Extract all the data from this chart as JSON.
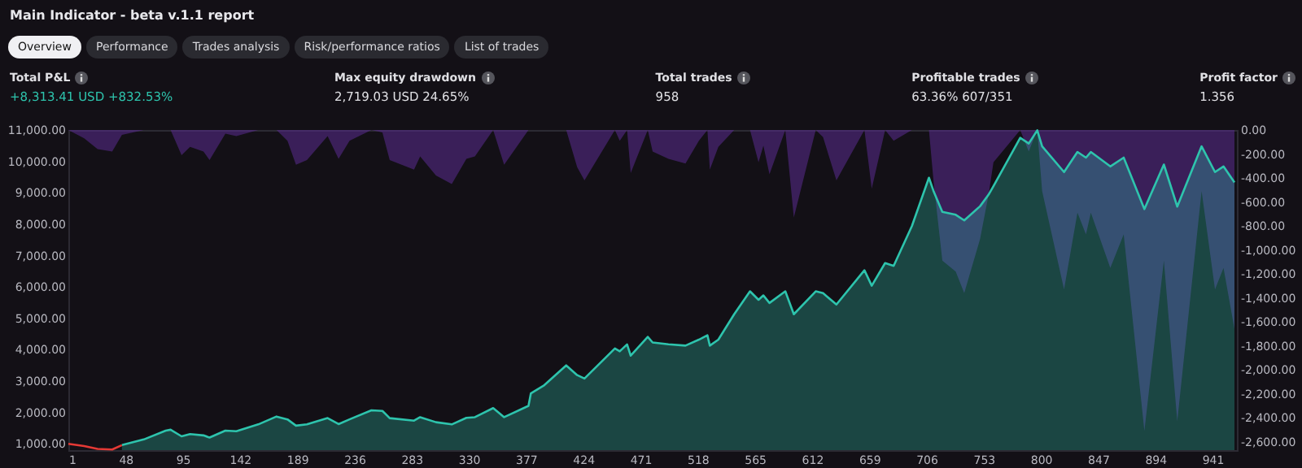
{
  "chart_data": {
    "type": "area",
    "title": "Main Indicator - beta v.1.1 report",
    "annotations": [
      "Overview",
      "Performance",
      "Trades analysis",
      "Risk/performance ratios",
      "List of trades",
      "Total P&L",
      "+8,313.41 USD +832.53%",
      "Max equity drawdown",
      "2,719.03 USD 24.65%",
      "Total trades",
      "958",
      "Profitable trades",
      "63.36% 607/351",
      "Profit factor",
      "1.356"
    ],
    "xlim": [
      1,
      961
    ],
    "xticks": [
      1,
      48,
      95,
      142,
      189,
      236,
      283,
      330,
      377,
      424,
      471,
      518,
      565,
      612,
      659,
      706,
      753,
      800,
      847,
      894,
      941
    ],
    "ylim": [
      800,
      11000
    ],
    "yticks": [
      {
        "value": 1000,
        "label": "1,000.00"
      },
      {
        "value": 2000,
        "label": "2,000.00"
      },
      {
        "value": 3000,
        "label": "3,000.00"
      },
      {
        "value": 4000,
        "label": "4,000.00"
      },
      {
        "value": 5000,
        "label": "5,000.00"
      },
      {
        "value": 6000,
        "label": "6,000.00"
      },
      {
        "value": 7000,
        "label": "7,000.00"
      },
      {
        "value": 8000,
        "label": "8,000.00"
      },
      {
        "value": 9000,
        "label": "9,000.00"
      },
      {
        "value": 10000,
        "label": "10,000.00"
      },
      {
        "value": 11000,
        "label": "11,000.00"
      }
    ],
    "y2lim": [
      -2670,
      0
    ],
    "y2ticks": [
      {
        "value": 0,
        "label": "0.00"
      },
      {
        "value": -200,
        "label": "-200.00"
      },
      {
        "value": -400,
        "label": "-400.00"
      },
      {
        "value": -600,
        "label": "-600.00"
      },
      {
        "value": -800,
        "label": "-800.00"
      },
      {
        "value": -1000,
        "label": "-1,000.00"
      },
      {
        "value": -1200,
        "label": "-1,200.00"
      },
      {
        "value": -1400,
        "label": "-1,400.00"
      },
      {
        "value": -1600,
        "label": "-1,600.00"
      },
      {
        "value": -1800,
        "label": "-1,800.00"
      },
      {
        "value": -2000,
        "label": "-2,000.00"
      },
      {
        "value": -2200,
        "label": "-2,200.00"
      },
      {
        "value": -2400,
        "label": "-2,400.00"
      },
      {
        "value": -2600,
        "label": "-2,600.00"
      }
    ],
    "grid": false,
    "series": [
      {
        "type": "area",
        "axis": "y2",
        "color": "#5b2c91",
        "x": [
          1,
          14,
          25,
          37,
          45,
          63,
          81,
          85,
          94,
          101,
          112,
          117,
          130,
          139,
          157,
          172,
          181,
          188,
          197,
          214,
          223,
          232,
          250,
          259,
          265,
          285,
          290,
          303,
          316,
          328,
          335,
          350,
          359,
          379,
          381,
          392,
          410,
          419,
          425,
          450,
          454,
          460,
          463,
          477,
          481,
          494,
          508,
          519,
          526,
          528,
          535,
          548,
          561,
          568,
          572,
          577,
          590,
          597,
          615,
          621,
          632,
          655,
          661,
          672,
          679,
          694,
          708,
          712,
          719,
          730,
          737,
          750,
          757,
          761,
          783,
          790,
          797,
          801,
          819,
          830,
          837,
          841,
          857,
          868,
          885,
          901,
          912,
          932,
          943,
          950,
          959
        ],
        "values": [
          0,
          -70,
          -160,
          -180,
          -40,
          0,
          0,
          0,
          -210,
          -140,
          -180,
          -250,
          -30,
          -50,
          0,
          0,
          -90,
          -290,
          -250,
          -50,
          -240,
          -90,
          0,
          -20,
          -250,
          -330,
          -220,
          -380,
          -450,
          -240,
          -220,
          0,
          -290,
          0,
          0,
          0,
          0,
          -310,
          -420,
          0,
          -90,
          0,
          -360,
          0,
          -180,
          -240,
          -280,
          -90,
          0,
          -330,
          -140,
          0,
          0,
          -270,
          -130,
          -370,
          0,
          -730,
          0,
          -60,
          -420,
          0,
          -490,
          0,
          -90,
          0,
          0,
          -450,
          -1090,
          -1180,
          -1360,
          -910,
          -540,
          -270,
          0,
          -180,
          0,
          -510,
          -1330,
          -690,
          -870,
          -690,
          -1150,
          -870,
          -2510,
          -1090,
          -2430,
          -510,
          -1330,
          -1150,
          -1660
        ]
      },
      {
        "color": "#2ec4ad",
        "x": [
          45,
          63,
          81,
          85,
          94,
          101,
          112,
          117,
          130,
          139,
          157,
          172,
          181,
          188,
          197,
          214,
          223,
          232,
          250,
          259,
          265,
          285,
          290,
          303,
          316,
          328,
          335,
          350,
          359,
          379,
          381,
          392,
          410,
          419,
          425,
          450,
          454,
          460,
          463,
          477,
          481,
          494,
          508,
          519,
          526,
          528,
          535,
          548,
          561,
          568,
          572,
          577,
          590,
          597,
          615,
          621,
          632,
          655,
          661,
          672,
          679,
          694,
          708,
          712,
          719,
          730,
          737,
          750,
          757,
          761,
          783,
          790,
          797,
          801,
          819,
          830,
          837,
          841,
          857,
          868,
          885,
          901,
          912,
          932,
          943,
          950,
          959
        ],
        "values": [
          960,
          1140,
          1420,
          1450,
          1240,
          1310,
          1270,
          1200,
          1420,
          1400,
          1620,
          1870,
          1780,
          1580,
          1620,
          1820,
          1630,
          1780,
          2070,
          2050,
          1820,
          1740,
          1850,
          1690,
          1620,
          1830,
          1850,
          2140,
          1850,
          2210,
          2610,
          2870,
          3500,
          3190,
          3080,
          4040,
          3950,
          4170,
          3810,
          4410,
          4230,
          4170,
          4130,
          4320,
          4460,
          4130,
          4320,
          5130,
          5860,
          5590,
          5730,
          5490,
          5860,
          5130,
          5860,
          5800,
          5440,
          6530,
          6040,
          6760,
          6670,
          7940,
          9480,
          9030,
          8390,
          8300,
          8120,
          8570,
          8940,
          9210,
          10750,
          10570,
          10990,
          10480,
          9660,
          10300,
          10120,
          10300,
          9840,
          10120,
          8480,
          9900,
          8560,
          10480,
          9660,
          9840,
          9330
        ]
      },
      {
        "type": "line",
        "color": "#e53935",
        "x": [
          1,
          14,
          25,
          37,
          45
        ],
        "values": [
          1000,
          930,
          840,
          820,
          960
        ]
      }
    ]
  }
}
